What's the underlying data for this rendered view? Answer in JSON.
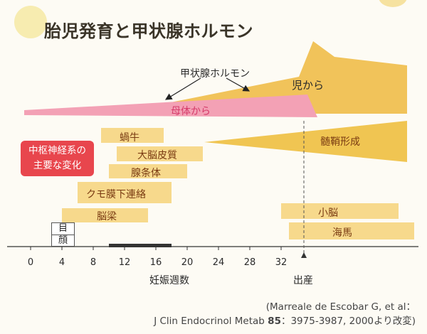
{
  "title": "胎児発育と甲状腺ホルモン",
  "hormone_label": "甲状腺ホルモン",
  "bands": {
    "fetal": "児から",
    "maternal": "母体から"
  },
  "cns_box": {
    "line1": "中枢神経系の",
    "line2": "主要な変化"
  },
  "development_bars": [
    {
      "label": "蝸牛",
      "start_week": 9,
      "end_week": 17
    },
    {
      "label": "大脳皮質",
      "start_week": 11,
      "end_week": 22
    },
    {
      "label": "腺条体",
      "start_week": 10,
      "end_week": 20
    },
    {
      "label": "クモ膜下連絡",
      "start_week": 6,
      "end_week": 18
    },
    {
      "label": "脳梁",
      "start_week": 4,
      "end_week": 15
    },
    {
      "label": "小脳",
      "start_week": 32,
      "end_week": 47
    },
    {
      "label": "海馬",
      "start_week": 33,
      "end_week": 49
    }
  ],
  "myelination_label": "髄鞘形成",
  "eye_box": {
    "top": "目",
    "bottom": "顔"
  },
  "axis": {
    "ticks": [
      "0",
      "4",
      "8",
      "12",
      "16",
      "20",
      "24",
      "28",
      "32"
    ],
    "label": "妊娠週数",
    "birth_label": "出産",
    "highlight_range_weeks": [
      10,
      18
    ]
  },
  "citation": {
    "line1": "(Marreale de Escobar G, et al：",
    "line2_prefix": "J Clin Endocrinol Metab ",
    "line2_volume": "85",
    "line2_suffix": "：3975-3987, 2000より改変)"
  },
  "colors": {
    "fetal_fill": "#f1c35a",
    "maternal_fill": "#f3a1b5",
    "bar_fill": "#f7d98c",
    "myelin_fill": "#f0c552",
    "cns_box": "#e8464d",
    "axis_highlight": "#333333"
  }
}
